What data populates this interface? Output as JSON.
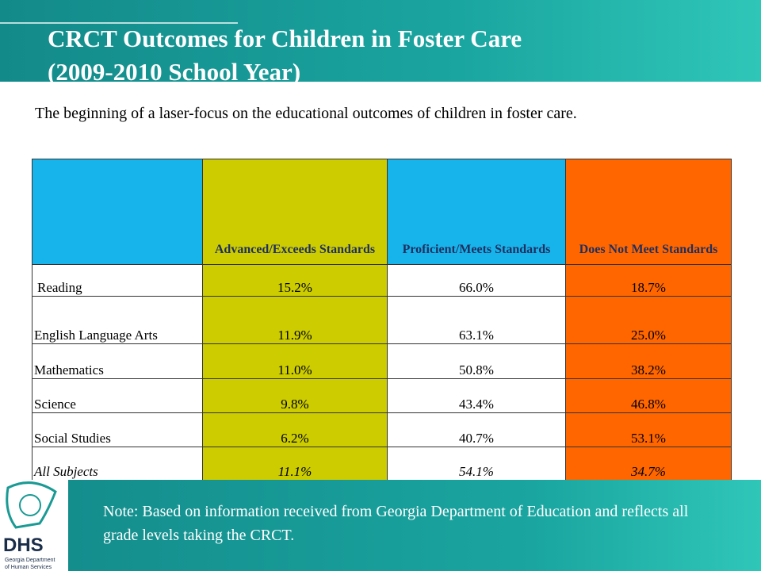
{
  "header": {
    "title": [
      "CRCT Outcomes for Children in Foster Care",
      "(2009-2010 School Year)"
    ],
    "subtitle": "The beginning of a laser-focus on the educational outcomes of children in foster care."
  },
  "table": {
    "columns": [
      "Advanced/Exceeds Standards",
      "Proficient/Meets Standards",
      "Does Not Meet Standards"
    ],
    "rows": [
      {
        "label": "Reading",
        "values": [
          "15.2%",
          "66.0%",
          "18.7%"
        ]
      },
      {
        "label": "English Language Arts",
        "values": [
          "11.9%",
          "63.1%",
          "25.0%"
        ]
      },
      {
        "label": "Mathematics",
        "values": [
          "11.0%",
          "50.8%",
          "38.2%"
        ]
      },
      {
        "label": "Science",
        "values": [
          "9.8%",
          "43.4%",
          "46.8%"
        ]
      },
      {
        "label": "Social Studies",
        "values": [
          "6.2%",
          "40.7%",
          "53.1%"
        ]
      },
      {
        "label": "All Subjects",
        "values": [
          "11.1%",
          "54.1%",
          "34.7%"
        ]
      }
    ]
  },
  "footer": {
    "note": "Note:  Based on information received from Georgia Department of Education and reflects all grade levels taking the CRCT.",
    "logo": {
      "name": "DHS",
      "org": [
        "Georgia Department",
        "of Human Services"
      ]
    }
  }
}
